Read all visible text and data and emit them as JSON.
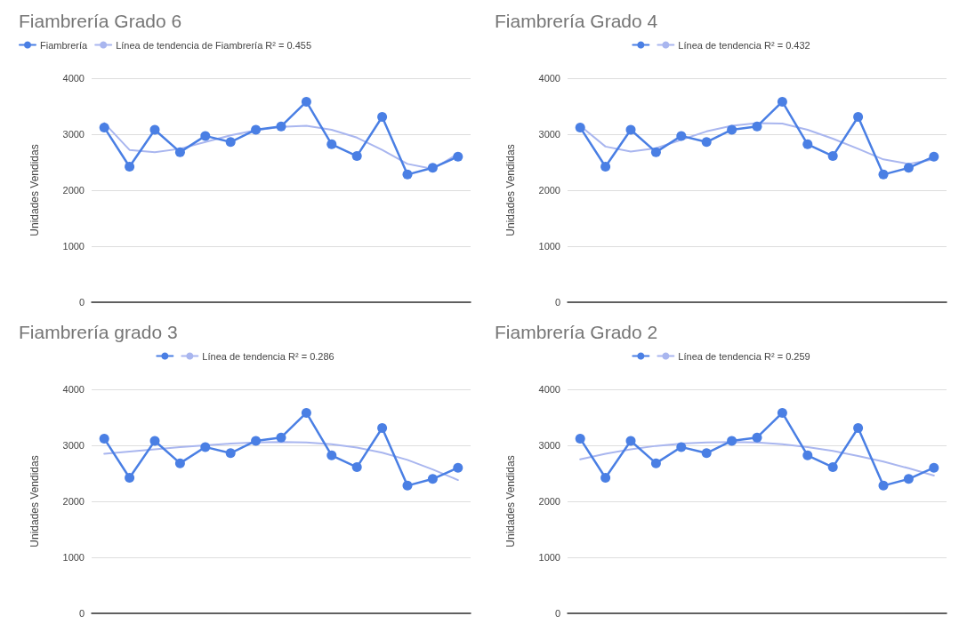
{
  "chart_data": [
    {
      "type": "line",
      "title": "Fiambrería Grado 6",
      "ylabel": "Unidades Vendidas",
      "categories": [
        null,
        null,
        null,
        null,
        null,
        null,
        null,
        null,
        null,
        null,
        null,
        null,
        null,
        null,
        null
      ],
      "ylim": [
        0,
        4000
      ],
      "yticks": [
        0,
        1000,
        2000,
        3000,
        4000
      ],
      "grid": "y",
      "legend": "top left",
      "series": [
        {
          "name": "Fiambrería",
          "color": "#4a7fe4",
          "marker": "circle",
          "values": [
            3120,
            2420,
            3080,
            2680,
            2970,
            2860,
            3080,
            3140,
            3580,
            2820,
            2610,
            3310,
            2280,
            2400,
            2600
          ]
        },
        {
          "name": "Línea de tendencia de Fiambrería R² = 0.455",
          "color": "#a9b6ef",
          "marker": "none",
          "values": [
            3200,
            2720,
            2680,
            2740,
            2860,
            2980,
            3070,
            3130,
            3150,
            3080,
            2940,
            2720,
            2470,
            2380,
            2650
          ]
        }
      ]
    },
    {
      "type": "line",
      "title": "Fiambrería Grado 4",
      "ylabel": "Unidades Vendidas",
      "categories": [
        null,
        null,
        null,
        null,
        null,
        null,
        null,
        null,
        null,
        null,
        null,
        null,
        null,
        null,
        null
      ],
      "ylim": [
        0,
        4000
      ],
      "yticks": [
        0,
        1000,
        2000,
        3000,
        4000
      ],
      "grid": "y",
      "legend": "top",
      "series": [
        {
          "color": "#4a7fe4",
          "marker": "circle",
          "values": [
            3120,
            2420,
            3080,
            2680,
            2970,
            2860,
            3080,
            3140,
            3580,
            2820,
            2610,
            3310,
            2280,
            2400,
            2600
          ]
        },
        {
          "name": "Línea de tendencia R² = 0.432",
          "color": "#a9b6ef",
          "marker": "none",
          "values": [
            3150,
            2780,
            2690,
            2750,
            2900,
            3050,
            3150,
            3200,
            3190,
            3080,
            2920,
            2740,
            2550,
            2470,
            2550
          ]
        }
      ]
    },
    {
      "type": "line",
      "title": "Fiambrería grado 3",
      "ylabel": "Unidades Vendidas",
      "categories": [
        null,
        null,
        null,
        null,
        null,
        null,
        null,
        null,
        null,
        null,
        null,
        null,
        null,
        null,
        null
      ],
      "ylim": [
        0,
        4000
      ],
      "yticks": [
        0,
        1000,
        2000,
        3000,
        4000
      ],
      "grid": "y",
      "legend": "top",
      "series": [
        {
          "color": "#4a7fe4",
          "marker": "circle",
          "values": [
            3120,
            2420,
            3080,
            2680,
            2970,
            2860,
            3080,
            3140,
            3580,
            2820,
            2610,
            3310,
            2280,
            2400,
            2600
          ]
        },
        {
          "name": "Línea de tendencia R² = 0.286",
          "color": "#a9b6ef",
          "marker": "none",
          "values": [
            2850,
            2890,
            2930,
            2970,
            3000,
            3030,
            3050,
            3060,
            3050,
            3020,
            2960,
            2870,
            2740,
            2570,
            2380
          ]
        }
      ]
    },
    {
      "type": "line",
      "title": "Fiambrería Grado 2",
      "ylabel": "Unidades Vendidas",
      "categories": [
        null,
        null,
        null,
        null,
        null,
        null,
        null,
        null,
        null,
        null,
        null,
        null,
        null,
        null,
        null
      ],
      "ylim": [
        0,
        4000
      ],
      "yticks": [
        0,
        1000,
        2000,
        3000,
        4000
      ],
      "grid": "y",
      "legend": "top",
      "series": [
        {
          "color": "#4a7fe4",
          "marker": "circle",
          "values": [
            3120,
            2420,
            3080,
            2680,
            2970,
            2860,
            3080,
            3140,
            3580,
            2820,
            2610,
            3310,
            2280,
            2400,
            2600
          ]
        },
        {
          "name": "Línea de tendencia R² = 0.259",
          "color": "#a9b6ef",
          "marker": "none",
          "values": [
            2750,
            2850,
            2930,
            2990,
            3030,
            3050,
            3060,
            3050,
            3020,
            2970,
            2900,
            2810,
            2710,
            2590,
            2460
          ]
        }
      ]
    }
  ]
}
